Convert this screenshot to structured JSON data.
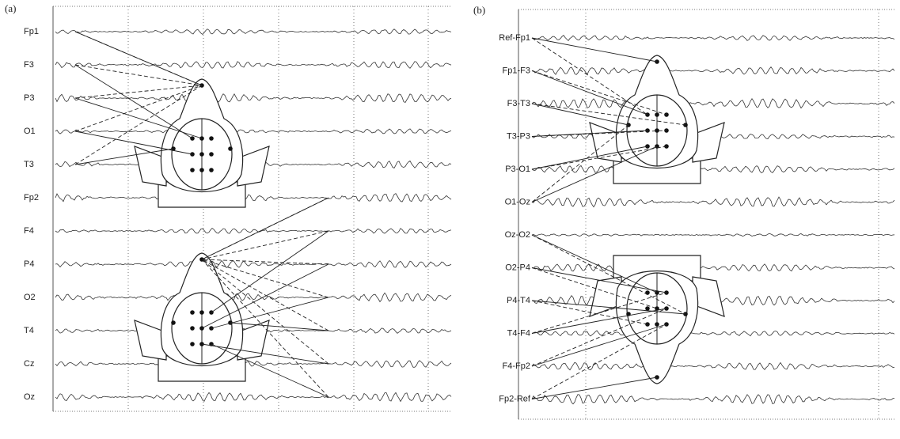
{
  "panels": [
    {
      "label": "(a)",
      "channels": [
        "Fp1",
        "F3",
        "P3",
        "O1",
        "T3",
        "Fp2",
        "F4",
        "P4",
        "O2",
        "T4",
        "Cz",
        "Oz"
      ]
    },
    {
      "label": "(b)",
      "channels": [
        "Ref-Fp1",
        "Fp1-F3",
        "F3-T3",
        "T3-P3",
        "P3-O1",
        "O1-Oz",
        "Oz-O2",
        "O2-P4",
        "P4-T4",
        "T4-F4",
        "F4-Fp2",
        "Fp2-Ref"
      ]
    }
  ]
}
